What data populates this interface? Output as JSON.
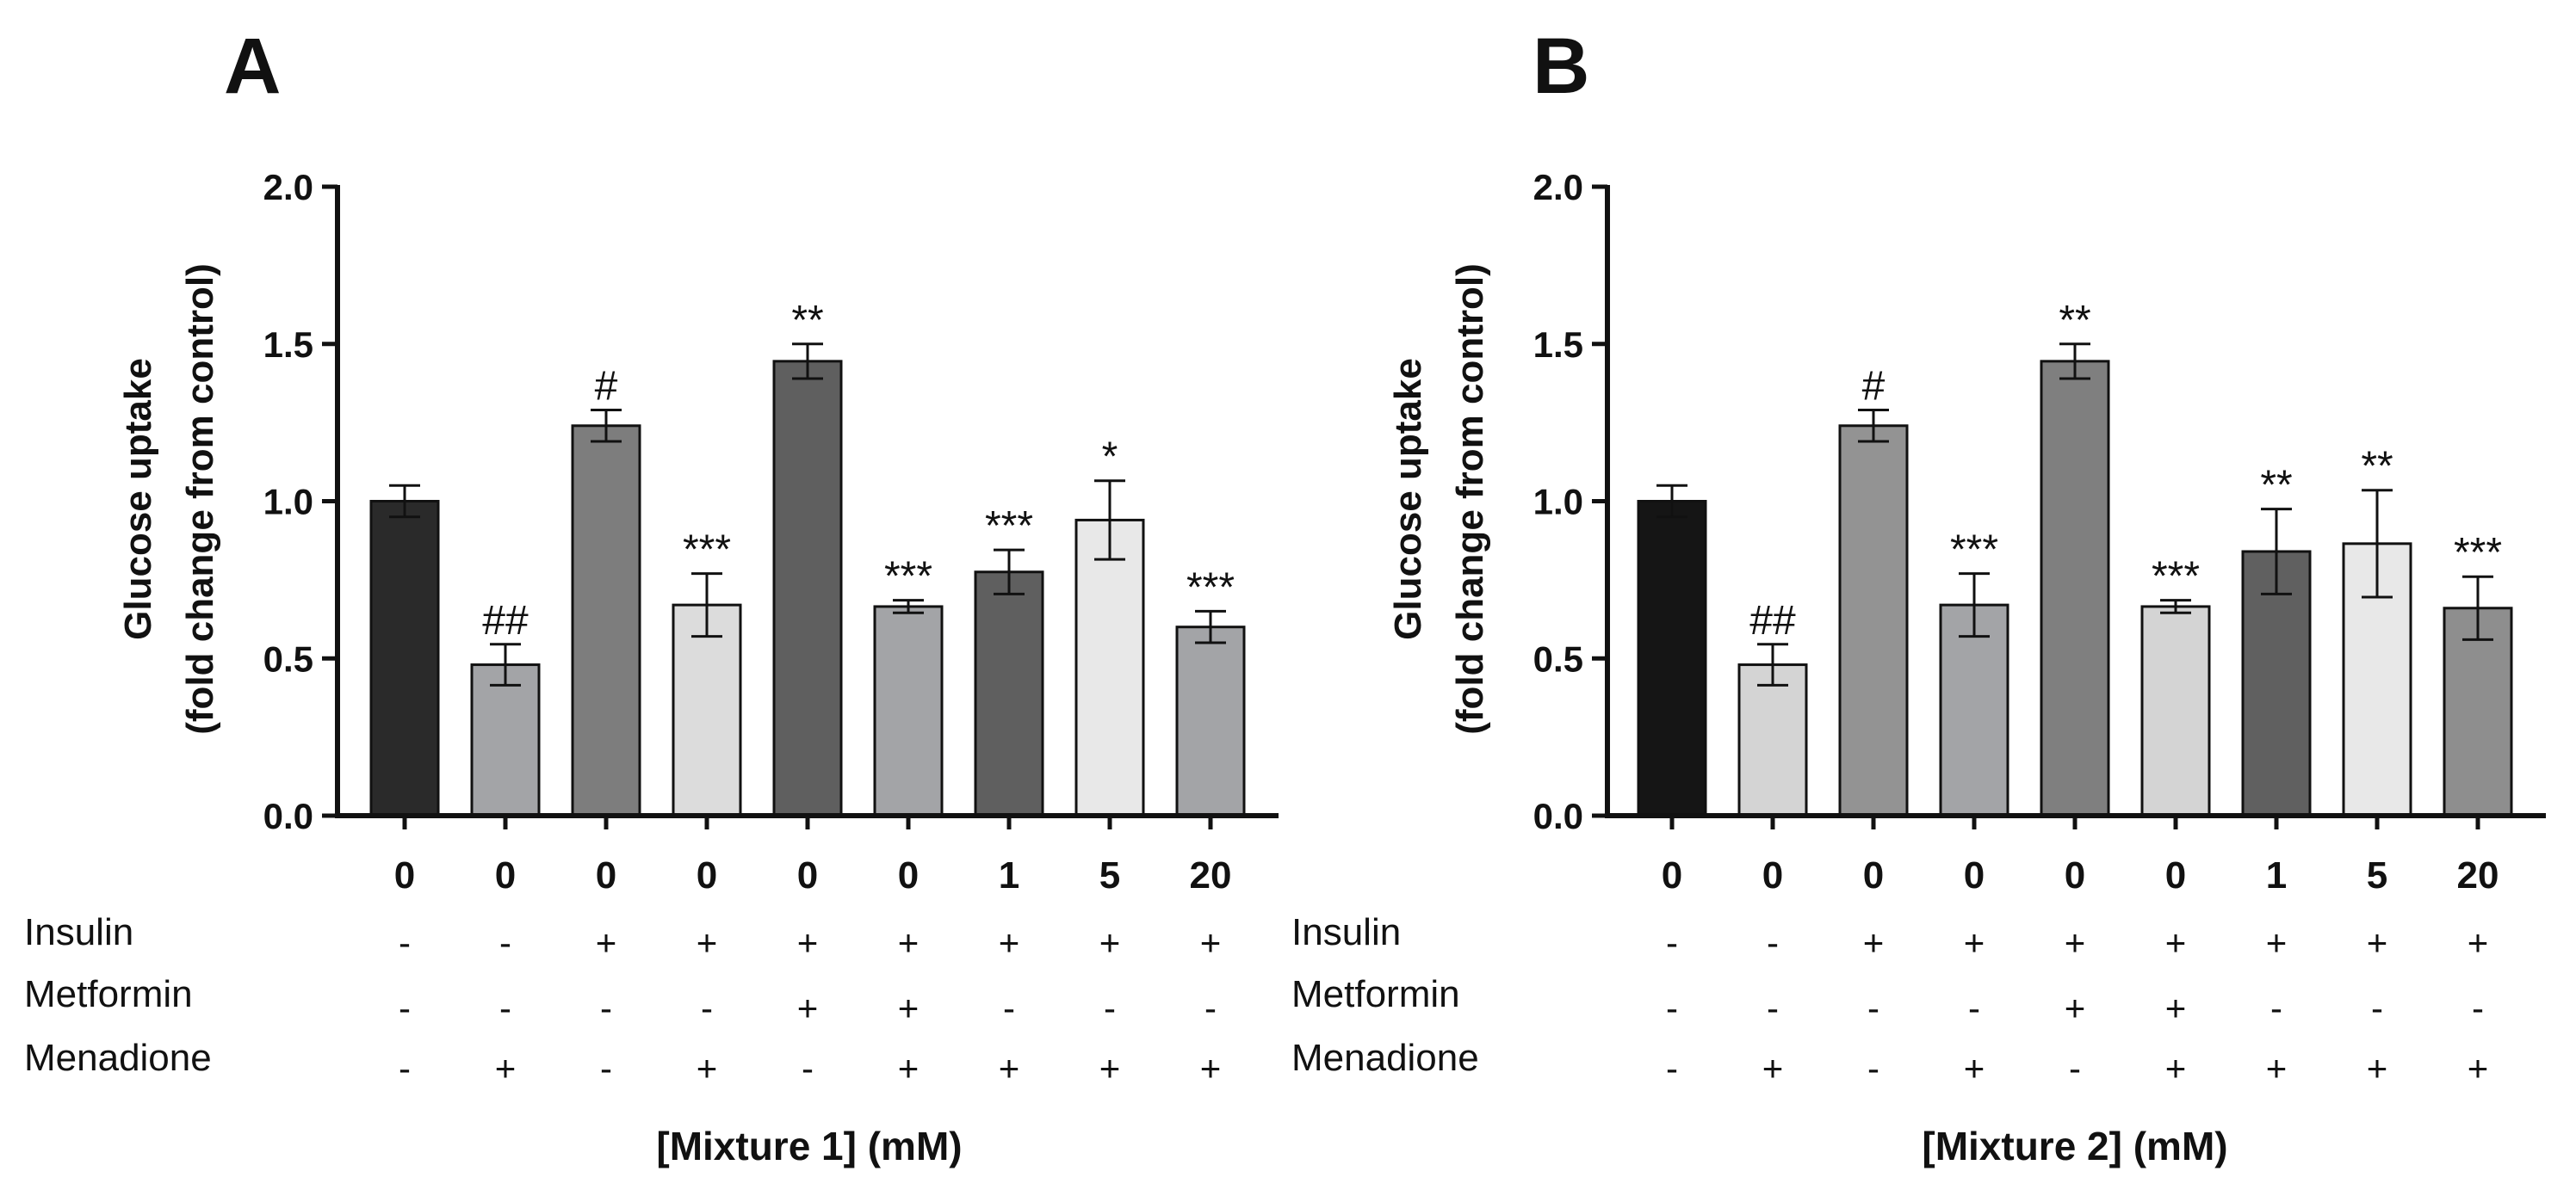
{
  "chart_data": [
    {
      "type": "bar",
      "panel": "A",
      "ylabel_lines": [
        "Glucose uptake",
        "(fold change from control)"
      ],
      "ylim": [
        0,
        2.0
      ],
      "yticks": [
        "0.0",
        "0.5",
        "1.0",
        "1.5",
        "2.0"
      ],
      "categories": [
        "0",
        "0",
        "0",
        "0",
        "0",
        "0",
        "1",
        "5",
        "20"
      ],
      "values": [
        1.0,
        0.48,
        1.24,
        0.67,
        1.445,
        0.665,
        0.775,
        0.94,
        0.6
      ],
      "errors": [
        0.05,
        0.065,
        0.05,
        0.1,
        0.055,
        0.02,
        0.07,
        0.125,
        0.05
      ],
      "colors": [
        "#2a2a2a",
        "#a3a4a7",
        "#7d7d7d",
        "#dcdcdc",
        "#5f5f5f",
        "#a3a4a7",
        "#5f5f5f",
        "#e8e8e8",
        "#a3a4a7"
      ],
      "significance": [
        "",
        "##",
        "#",
        "***",
        "**",
        "***",
        "***",
        "*",
        "***"
      ],
      "treatments": [
        {
          "name": "Insulin",
          "marks": [
            "-",
            "-",
            "+",
            "+",
            "+",
            "+",
            "+",
            "+",
            "+"
          ]
        },
        {
          "name": "Metformin",
          "marks": [
            "-",
            "-",
            "-",
            "-",
            "+",
            "+",
            "-",
            "-",
            "-"
          ]
        },
        {
          "name": "Menadione",
          "marks": [
            "-",
            "+",
            "-",
            "+",
            "-",
            "+",
            "+",
            "+",
            "+"
          ]
        }
      ],
      "xlabel": "[Mixture 1] (mM)",
      "grid": false,
      "legend": "none"
    },
    {
      "type": "bar",
      "panel": "B",
      "ylabel_lines": [
        "Glucose uptake",
        "(fold change from control)"
      ],
      "ylim": [
        0,
        2.0
      ],
      "yticks": [
        "0.0",
        "0.5",
        "1.0",
        "1.5",
        "2.0"
      ],
      "categories": [
        "0",
        "0",
        "0",
        "0",
        "0",
        "0",
        "1",
        "5",
        "20"
      ],
      "values": [
        1.0,
        0.48,
        1.24,
        0.67,
        1.445,
        0.665,
        0.84,
        0.865,
        0.66
      ],
      "errors": [
        0.05,
        0.065,
        0.05,
        0.1,
        0.055,
        0.02,
        0.135,
        0.17,
        0.1
      ],
      "colors": [
        "#151515",
        "#d4d4d4",
        "#939393",
        "#a3a4a7",
        "#7f7f7f",
        "#d4d4d4",
        "#606060",
        "#e8e8e8",
        "#8e8e8e"
      ],
      "significance": [
        "",
        "##",
        "#",
        "***",
        "**",
        "***",
        "**",
        "**",
        "***"
      ],
      "treatments": [
        {
          "name": "Insulin",
          "marks": [
            "-",
            "-",
            "+",
            "+",
            "+",
            "+",
            "+",
            "+",
            "+"
          ]
        },
        {
          "name": "Metformin",
          "marks": [
            "-",
            "-",
            "-",
            "-",
            "+",
            "+",
            "-",
            "-",
            "-"
          ]
        },
        {
          "name": "Menadione",
          "marks": [
            "-",
            "+",
            "-",
            "+",
            "-",
            "+",
            "+",
            "+",
            "+"
          ]
        }
      ],
      "xlabel": "[Mixture 2] (mM)",
      "grid": false,
      "legend": "none"
    }
  ]
}
